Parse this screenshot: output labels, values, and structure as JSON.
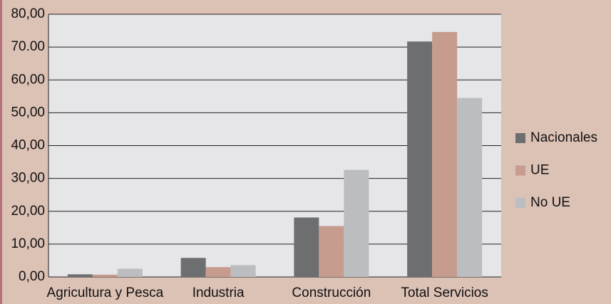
{
  "chart_data": {
    "type": "bar",
    "categories": [
      "Agricultura y Pesca",
      "Industria",
      "Construcción",
      "Total Servicios"
    ],
    "series": [
      {
        "name": "Nacionales",
        "color": "#6d6e70",
        "values": [
          0.8,
          5.8,
          18.1,
          71.7
        ]
      },
      {
        "name": "UE",
        "color": "#c69c8f",
        "values": [
          0.7,
          3.0,
          15.5,
          74.6
        ]
      },
      {
        "name": "No UE",
        "color": "#bcbdc1",
        "values": [
          2.5,
          3.6,
          32.6,
          54.5
        ]
      }
    ],
    "ylim": [
      0,
      80
    ],
    "yticks": [
      {
        "value": 0,
        "label": "0,00"
      },
      {
        "value": 10,
        "label": "10,00"
      },
      {
        "value": 20,
        "label": "20,00"
      },
      {
        "value": 30,
        "label": "30,00"
      },
      {
        "value": 40,
        "label": "40,00"
      },
      {
        "value": 50,
        "label": "50,00"
      },
      {
        "value": 60,
        "label": "60,00"
      },
      {
        "value": 70,
        "label": "70.00"
      },
      {
        "value": 80,
        "label": "80,00"
      }
    ],
    "grid": true,
    "legend": "right"
  }
}
